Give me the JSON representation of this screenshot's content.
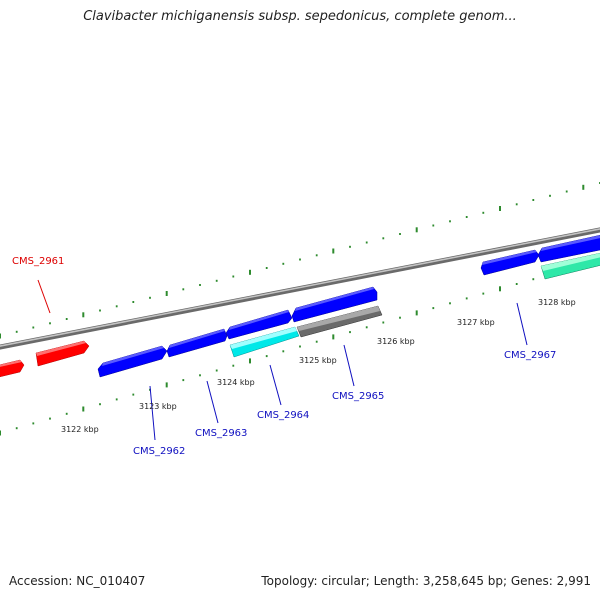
{
  "header": {
    "title": "Clavibacter michiganensis subsp. sepedonicus, complete genom..."
  },
  "footer": {
    "accession": "Accession: NC_010407",
    "summary": "Topology: circular; Length: 3,258,645 bp; Genes: 2,991"
  },
  "colors": {
    "gene_red": "#ff0000",
    "gene_blue": "#0000ff",
    "gene_cyan": "#00ffff",
    "gene_gray": "#707070",
    "gene_green": "#2ee8a8",
    "tick_green": "#2e8b2e",
    "backbone": "#909090",
    "label_red": "#dd0000",
    "label_blue": "#1010c0"
  },
  "scale_labels": [
    "3122 kbp",
    "3123 kbp",
    "3124 kbp",
    "3125 kbp",
    "3126 kbp",
    "3127 kbp",
    "3128 kbp"
  ],
  "genes": [
    {
      "id": "CMS_2961",
      "color": "gene_red",
      "label": "CMS_2961"
    },
    {
      "id": "CMS_2962",
      "color": "gene_blue",
      "label": "CMS_2962"
    },
    {
      "id": "CMS_2963",
      "color": "gene_blue",
      "label": "CMS_2963"
    },
    {
      "id": "CMS_2964",
      "color": "gene_cyan",
      "label": "CMS_2964"
    },
    {
      "id": "CMS_2965",
      "color": "gene_gray",
      "label": "CMS_2965"
    },
    {
      "id": "CMS_2967",
      "color": "gene_green",
      "label": "CMS_2967"
    }
  ]
}
